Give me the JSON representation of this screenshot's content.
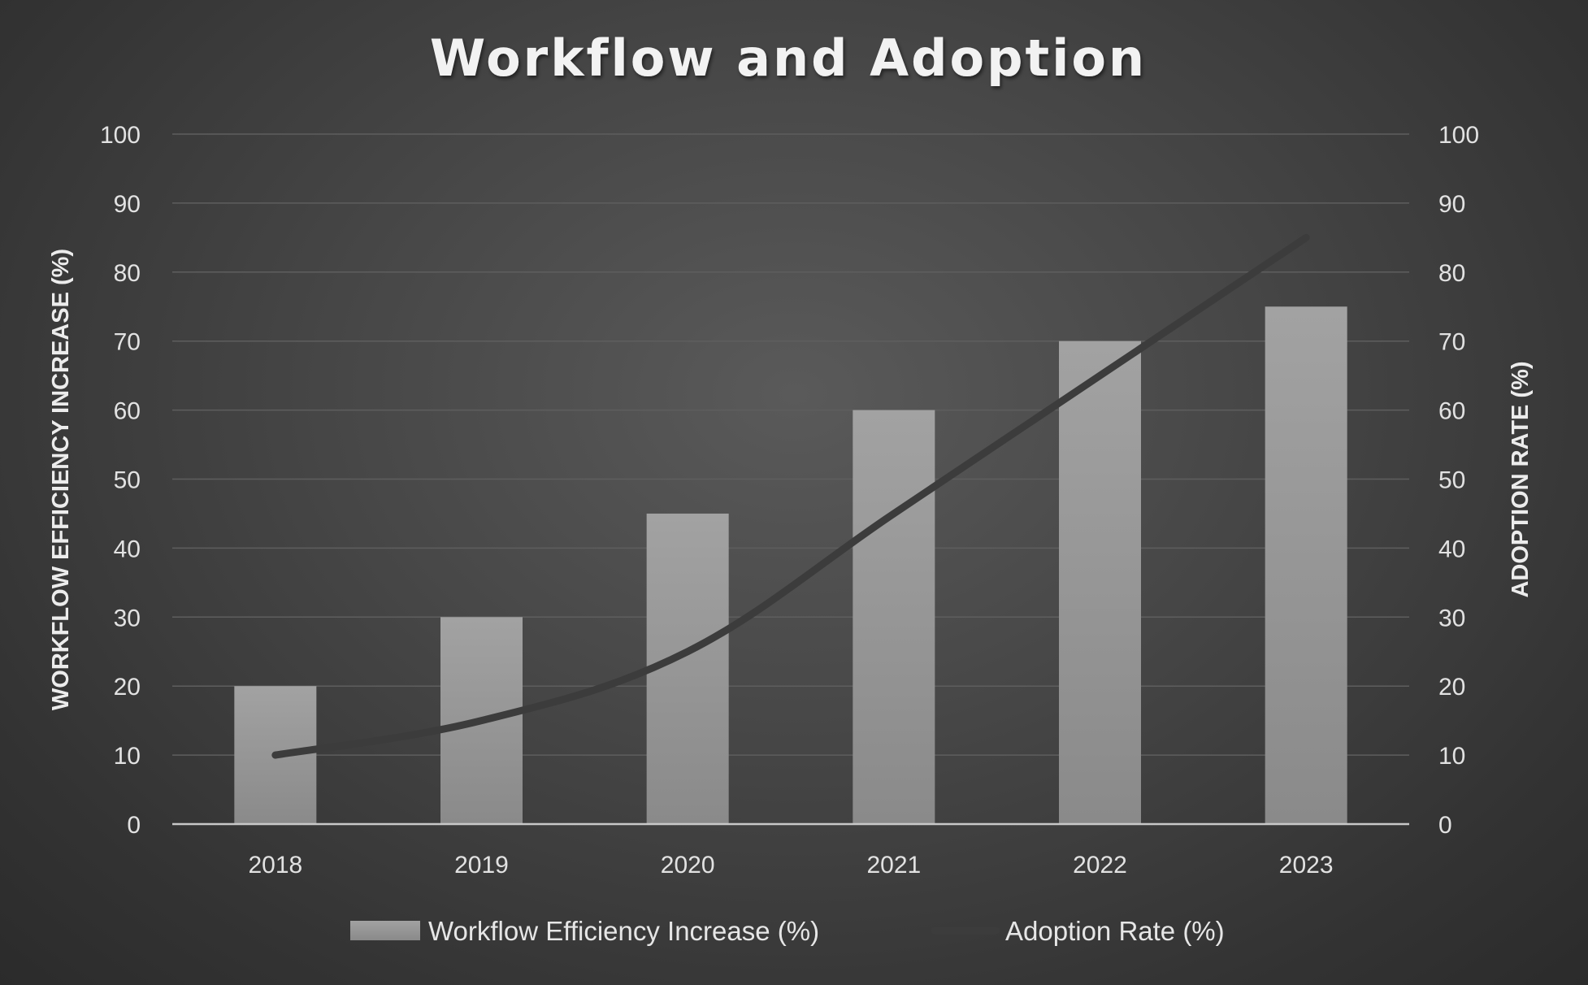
{
  "chart_data": {
    "type": "bar",
    "title": "Workflow and Adoption",
    "categories": [
      "2018",
      "2019",
      "2020",
      "2021",
      "2022",
      "2023"
    ],
    "series": [
      {
        "name": "Workflow Efficiency Increase (%)",
        "type": "bar",
        "axis": "left",
        "values": [
          20,
          30,
          45,
          60,
          70,
          75
        ]
      },
      {
        "name": "Adoption Rate (%)",
        "type": "line",
        "axis": "right",
        "values": [
          10,
          15,
          25,
          45,
          65,
          85
        ]
      }
    ],
    "ylabel": "WORKFLOW EFFICIENCY INCREASE (%)",
    "y2label": "ADOPTION RATE (%)",
    "ylim": [
      0,
      100
    ],
    "y2lim": [
      0,
      100
    ],
    "yticks": [
      "0",
      "10",
      "20",
      "30",
      "40",
      "50",
      "60",
      "70",
      "80",
      "90",
      "100"
    ],
    "grid": true,
    "legend_position": "bottom",
    "colors": {
      "bar": "#9a9a9a",
      "line": "#3c3c3c",
      "grid": "#5e5e5e",
      "text": "#e6e6e6"
    }
  }
}
